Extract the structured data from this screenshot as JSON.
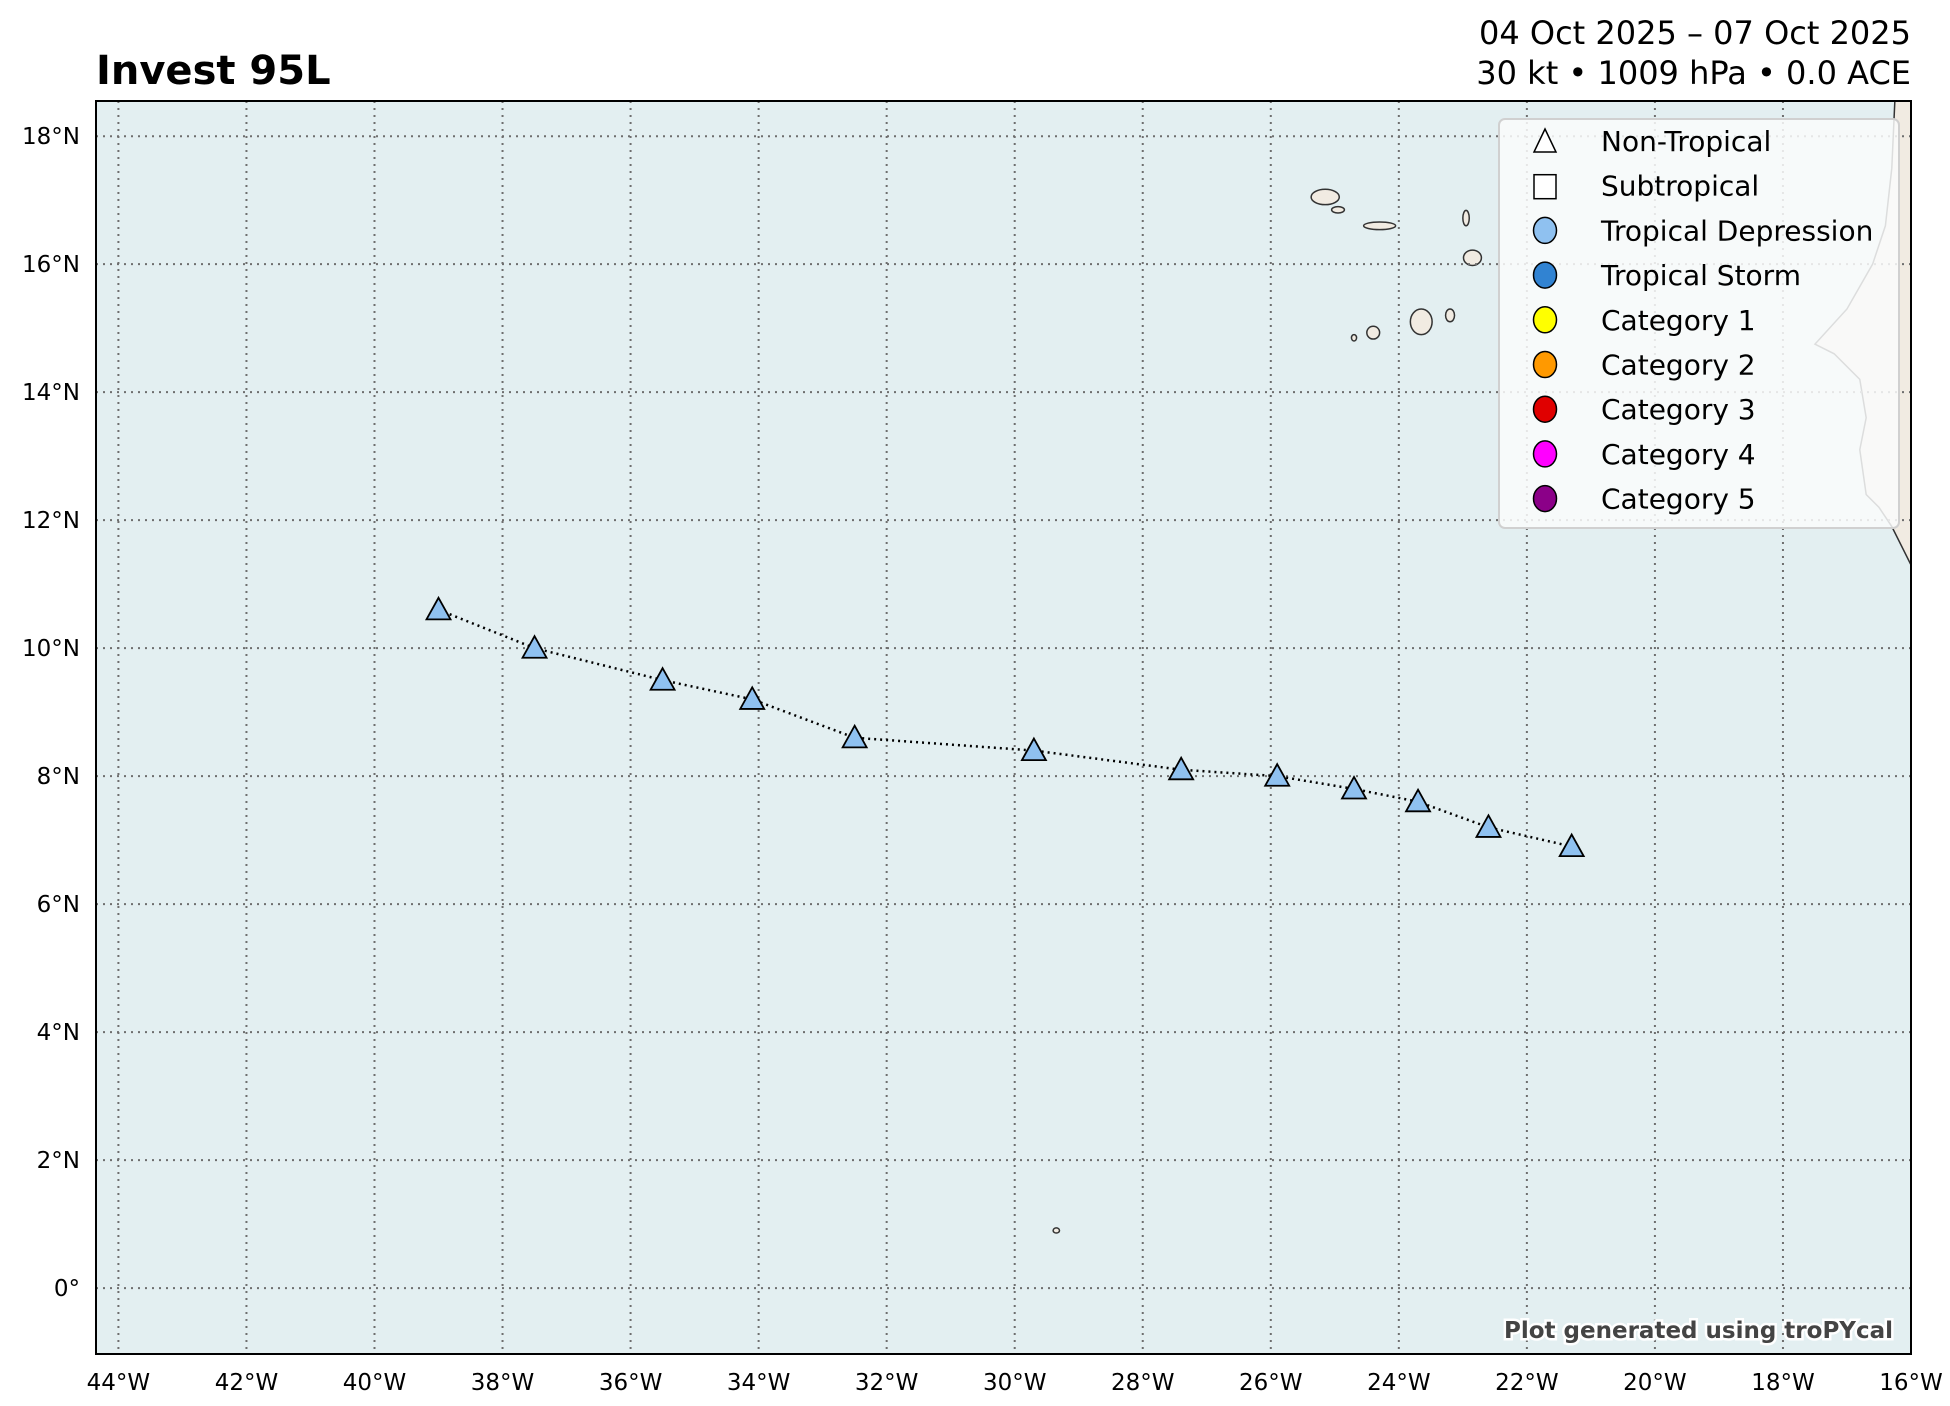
{
  "header": {
    "title": "Invest 95L",
    "date_range": "04 Oct 2025 – 07 Oct 2025",
    "summary": "30 kt • 1009 hPa • 0.0 ACE"
  },
  "watermark": "Plot generated using troPYcal",
  "colors": {
    "ocean": "#e3eff1",
    "land": "#f1ebe2",
    "track_marker": "#8fc1f0",
    "grid": "#6e6e6e"
  },
  "chart_data": {
    "type": "scatter",
    "title": "Invest 95L",
    "xlabel": "",
    "ylabel": "",
    "xlim": [
      -44.35,
      -16
    ],
    "ylim": [
      -1.03,
      18.55
    ],
    "grid": true,
    "legend_position": "top-right",
    "x_ticks": [
      -44,
      -42,
      -40,
      -38,
      -36,
      -34,
      -32,
      -30,
      -28,
      -26,
      -24,
      -22,
      -20,
      -18,
      -16
    ],
    "x_tick_labels": [
      "44°W",
      "42°W",
      "40°W",
      "38°W",
      "36°W",
      "34°W",
      "32°W",
      "30°W",
      "28°W",
      "26°W",
      "24°W",
      "22°W",
      "20°W",
      "18°W",
      "16°W"
    ],
    "y_ticks": [
      0,
      2,
      4,
      6,
      8,
      10,
      12,
      14,
      16,
      18
    ],
    "y_tick_labels": [
      "0°",
      "2°N",
      "4°N",
      "6°N",
      "8°N",
      "10°N",
      "12°N",
      "14°N",
      "16°N",
      "18°N"
    ],
    "legend": [
      {
        "label": "Non-Tropical",
        "marker": "triangle",
        "color": "#ffffff"
      },
      {
        "label": "Subtropical",
        "marker": "square",
        "color": "#ffffff"
      },
      {
        "label": "Tropical Depression",
        "marker": "circle",
        "color": "#8fc1f0"
      },
      {
        "label": "Tropical Storm",
        "marker": "circle",
        "color": "#3183d2"
      },
      {
        "label": "Category 1",
        "marker": "circle",
        "color": "#ffff00"
      },
      {
        "label": "Category 2",
        "marker": "circle",
        "color": "#ff9900"
      },
      {
        "label": "Category 3",
        "marker": "circle",
        "color": "#e00000"
      },
      {
        "label": "Category 4",
        "marker": "circle",
        "color": "#ff00ff"
      },
      {
        "label": "Category 5",
        "marker": "circle",
        "color": "#8b0088"
      }
    ],
    "series": [
      {
        "marker": "triangle",
        "color": "#8fc1f0",
        "line_style": "dotted",
        "points": [
          {
            "lon": -39.0,
            "lat": 10.6
          },
          {
            "lon": -37.5,
            "lat": 10.0
          },
          {
            "lon": -35.5,
            "lat": 9.5
          },
          {
            "lon": -34.1,
            "lat": 9.2
          },
          {
            "lon": -32.5,
            "lat": 8.6
          },
          {
            "lon": -29.7,
            "lat": 8.4
          },
          {
            "lon": -27.4,
            "lat": 8.1
          },
          {
            "lon": -25.9,
            "lat": 8.0
          },
          {
            "lon": -24.7,
            "lat": 7.8
          },
          {
            "lon": -23.7,
            "lat": 7.6
          },
          {
            "lon": -22.6,
            "lat": 7.2
          },
          {
            "lon": -21.3,
            "lat": 6.9
          }
        ]
      }
    ]
  }
}
